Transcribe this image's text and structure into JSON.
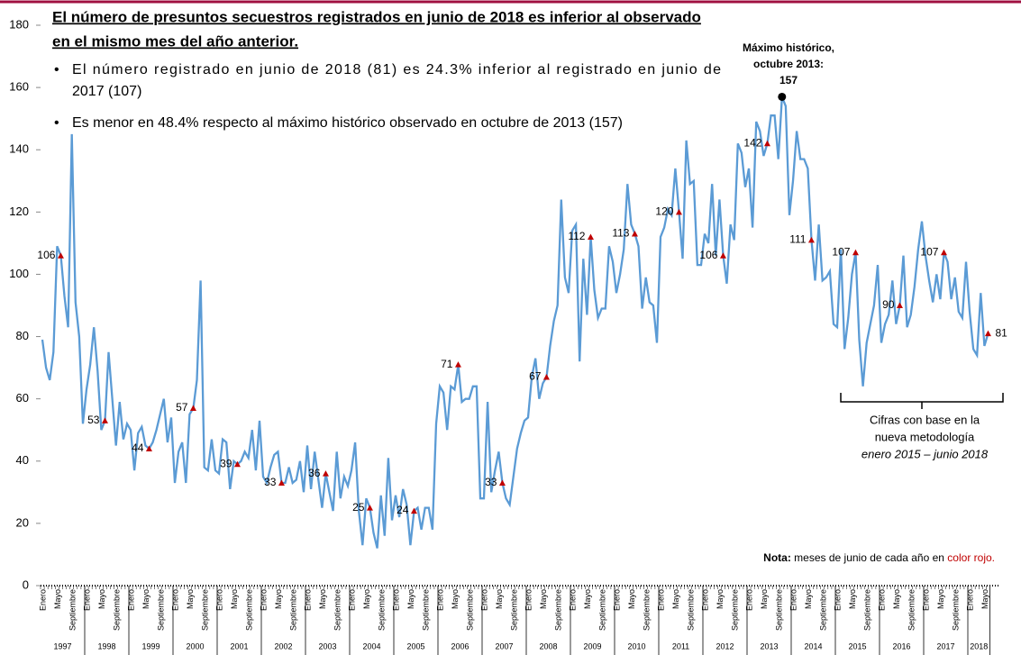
{
  "chart_data": {
    "type": "line",
    "title_lines": [
      "El número de presuntos secuestros registrados en junio de 2018 es inferior al observado",
      "en el mismo mes del año anterior."
    ],
    "bullets": [
      [
        "El número registrado en junio de 2018 (81) es 24.3% inferior al registrado en junio de",
        "2017 (107)"
      ],
      [
        "Es menor en 48.4% respecto al máximo histórico observado en octubre de 2013 (157)"
      ]
    ],
    "max_annotation": [
      "Máximo histórico,",
      "octubre 2013:"
    ],
    "bracket_text": [
      "Cifras con base en la",
      "nueva metodología",
      "enero 2015 – junio 2018"
    ],
    "note": {
      "bold": "Nota:",
      "text": "meses de junio de cada año en",
      "red": "color rojo."
    },
    "month_labels": [
      "Enero",
      "Mayo",
      "Septiembre"
    ],
    "years": [
      "1997",
      "1998",
      "1999",
      "2000",
      "2001",
      "2002",
      "2003",
      "2004",
      "2005",
      "2006",
      "2007",
      "2008",
      "2009",
      "2010",
      "2011",
      "2012",
      "2013",
      "2014",
      "2015",
      "2016",
      "2017",
      "2018"
    ],
    "color": "#5b9bd5",
    "highlight_color": "#c00000",
    "ylim": [
      0,
      180
    ],
    "yticks": [
      0,
      20,
      40,
      60,
      80,
      100,
      120,
      140,
      160,
      180
    ],
    "values": [
      79,
      70,
      66,
      75,
      109,
      106,
      93,
      83,
      145,
      91,
      80,
      52,
      63,
      71,
      83,
      69,
      50,
      53,
      75,
      60,
      45,
      59,
      47,
      52,
      50,
      37,
      49,
      51,
      45,
      44,
      46,
      50,
      55,
      60,
      46,
      54,
      33,
      43,
      46,
      33,
      55,
      57,
      66,
      98,
      38,
      37,
      47,
      37,
      36,
      47,
      46,
      31,
      40,
      39,
      40,
      43,
      41,
      50,
      37,
      53,
      35,
      33,
      38,
      42,
      43,
      33,
      33,
      38,
      33,
      34,
      40,
      30,
      45,
      31,
      43,
      34,
      25,
      36,
      30,
      24,
      43,
      28,
      35,
      32,
      37,
      46,
      24,
      13,
      28,
      25,
      17,
      12,
      29,
      16,
      41,
      21,
      29,
      22,
      31,
      26,
      13,
      24,
      25,
      18,
      25,
      25,
      18,
      52,
      64,
      62,
      50,
      64,
      63,
      71,
      59,
      60,
      60,
      64,
      64,
      28,
      28,
      59,
      30,
      37,
      43,
      33,
      28,
      26,
      35,
      44,
      49,
      53,
      54,
      67,
      73,
      60,
      65,
      67,
      77,
      85,
      90,
      124,
      99,
      94,
      114,
      116,
      72,
      105,
      87,
      112,
      95,
      86,
      89,
      89,
      109,
      104,
      94,
      100,
      108,
      129,
      116,
      113,
      109,
      89,
      99,
      91,
      90,
      78,
      112,
      115,
      121,
      119,
      134,
      120,
      105,
      143,
      129,
      130,
      103,
      103,
      113,
      110,
      129,
      106,
      124,
      106,
      97,
      116,
      111,
      142,
      139,
      128,
      134,
      115,
      149,
      146,
      138,
      142,
      151,
      151,
      137,
      157,
      154,
      119,
      130,
      146,
      137,
      137,
      134,
      111,
      98,
      116,
      98,
      99,
      101,
      84,
      83,
      108,
      76,
      86,
      100,
      107,
      79,
      64,
      78,
      84,
      90,
      103,
      78,
      84,
      87,
      98,
      84,
      90,
      106,
      83,
      87,
      96,
      108,
      117,
      106,
      98,
      91,
      100,
      92,
      107,
      104,
      92,
      99,
      88,
      86,
      104,
      88,
      76,
      74,
      94,
      77,
      81
    ]
  }
}
